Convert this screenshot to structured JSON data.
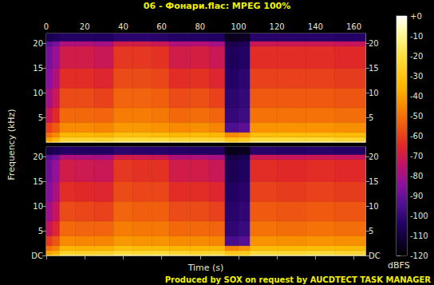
{
  "chart_data": {
    "type": "spectrogram",
    "title": "06 - Фонари.flac: MPEG 100%",
    "x_label": "Time (s)",
    "y_label": "Frequency (kHz)",
    "footer": "Produced by SOX on request by AUCDTECT TASK MANAGER",
    "xlim": [
      0,
      166
    ],
    "xticks": [
      0,
      20,
      40,
      60,
      80,
      100,
      120,
      140,
      160
    ],
    "ylim": [
      0,
      22.05
    ],
    "time_edges": [
      0,
      3,
      7,
      15,
      25,
      35,
      45,
      55,
      64,
      75,
      85,
      93,
      100,
      106,
      120,
      135,
      150,
      166
    ],
    "freq_edges": [
      0,
      0.3,
      1,
      2,
      4,
      7,
      11,
      15,
      19.5,
      20.5,
      22.05
    ],
    "channels": [
      {
        "yticks": [
          5,
          10,
          15,
          20
        ],
        "levels": [
          [
            -30,
            -25,
            -15,
            -15,
            -15,
            -12,
            -12,
            -12,
            -14,
            -14,
            -14,
            -22,
            -20,
            -12,
            -12,
            -12,
            -14
          ],
          [
            -40,
            -35,
            -25,
            -25,
            -25,
            -22,
            -22,
            -22,
            -24,
            -24,
            -24,
            -30,
            -28,
            -22,
            -22,
            -22,
            -24
          ],
          [
            -50,
            -45,
            -35,
            -35,
            -36,
            -32,
            -32,
            -33,
            -35,
            -34,
            -35,
            -45,
            -42,
            -33,
            -33,
            -33,
            -34
          ],
          [
            -60,
            -55,
            -45,
            -45,
            -46,
            -42,
            -42,
            -43,
            -45,
            -44,
            -46,
            -95,
            -92,
            -43,
            -43,
            -43,
            -44
          ],
          [
            -72,
            -65,
            -52,
            -52,
            -53,
            -48,
            -48,
            -49,
            -52,
            -51,
            -53,
            -100,
            -98,
            -50,
            -50,
            -50,
            -51
          ],
          [
            -80,
            -72,
            -58,
            -58,
            -60,
            -53,
            -53,
            -54,
            -58,
            -57,
            -60,
            -102,
            -100,
            -55,
            -55,
            -55,
            -56
          ],
          [
            -85,
            -78,
            -64,
            -64,
            -66,
            -58,
            -58,
            -59,
            -64,
            -63,
            -66,
            -104,
            -102,
            -60,
            -60,
            -60,
            -61
          ],
          [
            -88,
            -82,
            -70,
            -70,
            -72,
            -62,
            -62,
            -63,
            -70,
            -69,
            -72,
            -106,
            -104,
            -64,
            -64,
            -64,
            -65
          ],
          [
            -92,
            -88,
            -78,
            -78,
            -80,
            -70,
            -70,
            -72,
            -78,
            -77,
            -80,
            -108,
            -106,
            -72,
            -72,
            -72,
            -73
          ],
          [
            -108,
            -106,
            -104,
            -104,
            -105,
            -102,
            -102,
            -103,
            -104,
            -104,
            -105,
            -115,
            -114,
            -103,
            -103,
            -103,
            -104
          ]
        ]
      },
      {
        "yticks": [
          {
            "value": 0,
            "label": "DC"
          },
          5,
          10,
          15,
          20
        ],
        "levels": [
          [
            -30,
            -26,
            -15,
            -16,
            -15,
            -12,
            -13,
            -12,
            -14,
            -15,
            -14,
            -22,
            -21,
            -12,
            -13,
            -12,
            -14
          ],
          [
            -40,
            -36,
            -25,
            -26,
            -25,
            -22,
            -23,
            -22,
            -24,
            -25,
            -24,
            -30,
            -29,
            -22,
            -23,
            -22,
            -24
          ],
          [
            -50,
            -46,
            -35,
            -36,
            -36,
            -32,
            -33,
            -33,
            -35,
            -35,
            -35,
            -46,
            -43,
            -33,
            -34,
            -33,
            -34
          ],
          [
            -61,
            -56,
            -45,
            -46,
            -46,
            -42,
            -43,
            -43,
            -45,
            -45,
            -46,
            -96,
            -93,
            -43,
            -44,
            -43,
            -44
          ],
          [
            -73,
            -66,
            -52,
            -53,
            -53,
            -48,
            -49,
            -49,
            -52,
            -52,
            -53,
            -101,
            -99,
            -50,
            -51,
            -50,
            -51
          ],
          [
            -81,
            -73,
            -58,
            -59,
            -60,
            -53,
            -54,
            -54,
            -58,
            -58,
            -60,
            -103,
            -101,
            -55,
            -56,
            -55,
            -56
          ],
          [
            -86,
            -79,
            -64,
            -65,
            -66,
            -58,
            -59,
            -59,
            -64,
            -64,
            -66,
            -105,
            -103,
            -60,
            -61,
            -60,
            -61
          ],
          [
            -89,
            -83,
            -70,
            -71,
            -72,
            -62,
            -63,
            -63,
            -70,
            -70,
            -72,
            -107,
            -105,
            -64,
            -65,
            -64,
            -65
          ],
          [
            -93,
            -89,
            -78,
            -79,
            -80,
            -70,
            -71,
            -72,
            -78,
            -78,
            -80,
            -109,
            -107,
            -72,
            -73,
            -72,
            -73
          ],
          [
            -109,
            -107,
            -104,
            -105,
            -105,
            -102,
            -103,
            -103,
            -104,
            -105,
            -105,
            -116,
            -115,
            -103,
            -104,
            -103,
            -104
          ]
        ]
      }
    ],
    "colorbar": {
      "label": "dBFS",
      "range": [
        -120,
        0
      ],
      "ticks": [
        -120,
        -110,
        -100,
        -90,
        -80,
        -70,
        -60,
        -50,
        -40,
        -30,
        -20,
        -10,
        {
          "value": 0,
          "label": "+0"
        }
      ]
    }
  }
}
